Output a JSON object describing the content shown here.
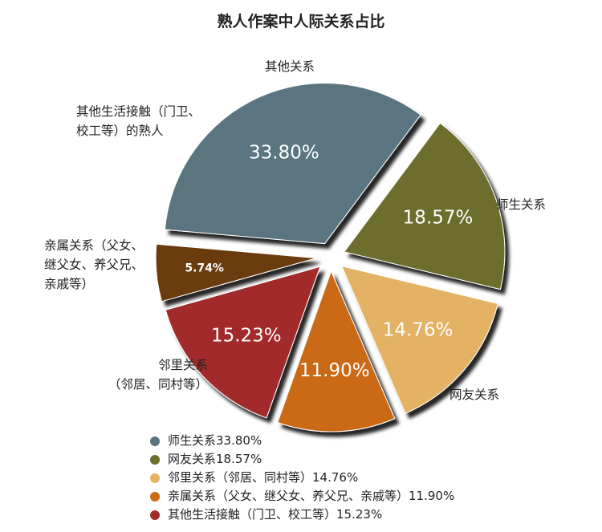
{
  "chart_data": {
    "type": "pie",
    "title": "熟人作案中人际关系占比",
    "slices": [
      {
        "label": "师生关系",
        "value": 33.8,
        "value_label": "33.80%",
        "color": "#5a7480"
      },
      {
        "label": "网友关系",
        "value": 18.57,
        "value_label": "18.57%",
        "color": "#6d6d2e"
      },
      {
        "label": "邻里关系（邻居、同村等）",
        "value": 14.76,
        "value_label": "14.76%",
        "color": "#e4b265"
      },
      {
        "label": "亲属关系（父女、继父女、养父兄、亲戚等）",
        "value": 11.9,
        "value_label": "11.90%",
        "color": "#cb6b14"
      },
      {
        "label": "其他生活接触（门卫、校工等）的熟人",
        "value": 15.23,
        "value_label": "15.23%",
        "color": "#a32a2a"
      },
      {
        "label": "其他关系",
        "value": 5.74,
        "value_label": "5.74%",
        "color": "#6b3a10"
      }
    ],
    "outer_labels": [
      {
        "lines": [
          "师生关系"
        ]
      },
      {
        "lines": [
          "网友关系"
        ]
      },
      {
        "lines": [
          "邻里关系",
          "（邻居、同村等）"
        ]
      },
      {
        "lines": [
          "亲属关系（父女、",
          "继父女、养父兄、",
          "亲戚等）"
        ]
      },
      {
        "lines": [
          "其他生活接触（门卫、",
          "校工等）的熟人"
        ]
      },
      {
        "lines": [
          "其他关系"
        ]
      }
    ],
    "legend": [
      {
        "text": "师生关系33.80%",
        "color": "#5a7480"
      },
      {
        "text": "网友关系18.57%",
        "color": "#6d6d2e"
      },
      {
        "text": "邻里关系（邻居、同村等）14.76%",
        "color": "#e4b265"
      },
      {
        "text": "亲属关系（父女、继父女、养父兄、亲戚等）11.90%",
        "color": "#cb6b14"
      },
      {
        "text": "其他生活接触（门卫、校工等）15.23%",
        "color": "#a32a2a"
      }
    ],
    "legend_placement": "bottom"
  }
}
